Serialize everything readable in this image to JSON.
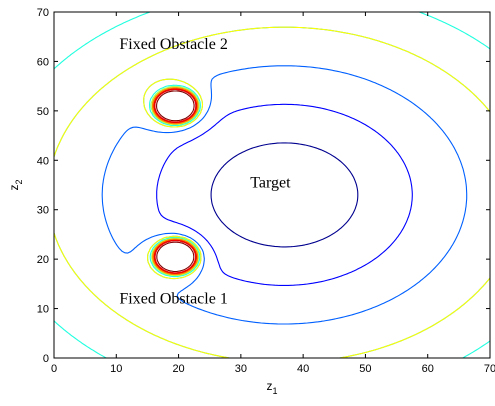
{
  "chart_data": {
    "type": "contour",
    "title": "",
    "xlabel": "z",
    "xlabel_subscript": "1",
    "ylabel": "z",
    "ylabel_subscript": "2",
    "xlim": [
      0,
      70
    ],
    "ylim": [
      0,
      70
    ],
    "x_ticks": [
      "0",
      "10",
      "20",
      "30",
      "40",
      "50",
      "60",
      "70"
    ],
    "y_ticks": [
      "0",
      "10",
      "20",
      "30",
      "40",
      "50",
      "60",
      "70"
    ],
    "grid": false,
    "legend": "none",
    "target": {
      "x": 37,
      "y": 33
    },
    "obstacles": [
      {
        "x": 19.5,
        "y": 51
      },
      {
        "x": 19.5,
        "y": 20.5
      }
    ],
    "contour_levels": [
      {
        "level": 1,
        "color": "#00008f"
      },
      {
        "level": 2,
        "color": "#0000ff"
      },
      {
        "level": 3,
        "color": "#0060ff"
      },
      {
        "level": 4,
        "color": "#00bfff"
      },
      {
        "level": 5,
        "color": "#20ffdf"
      },
      {
        "level": 6,
        "color": "#9fff60"
      },
      {
        "level": 7,
        "color": "#dfff20"
      },
      {
        "level": 8,
        "color": "#ffbf00"
      },
      {
        "level": 9,
        "color": "#ff6000"
      },
      {
        "level": 10,
        "color": "#df0000"
      },
      {
        "level": 11,
        "color": "#8f0000"
      }
    ],
    "annotations": [
      {
        "name": "label-obstacle-2",
        "text": "Fixed Obstacle 2",
        "x": 10.5,
        "y": 62.5
      },
      {
        "name": "label-target",
        "text": "Target",
        "x": 31.5,
        "y": 34.5
      },
      {
        "name": "label-obstacle-1",
        "text": "Fixed Obstacle 1",
        "x": 10.5,
        "y": 11
      }
    ]
  }
}
